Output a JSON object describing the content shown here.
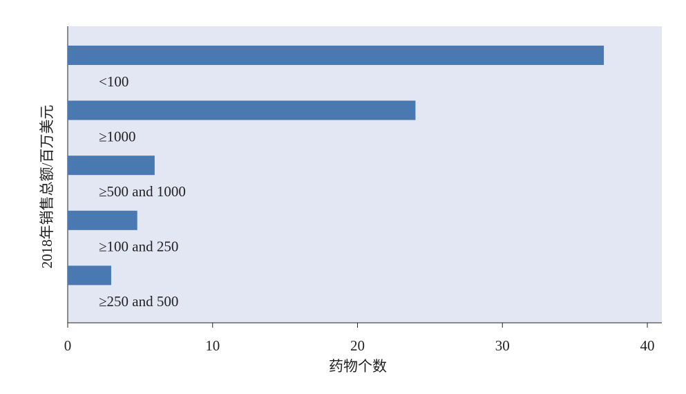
{
  "chart_data": {
    "type": "bar",
    "orientation": "horizontal",
    "categories": [
      "<100",
      "≥1000",
      "≥500 and 1000",
      "≥100 and 250",
      "≥250 and 500"
    ],
    "values": [
      37,
      24,
      6,
      4.8,
      3
    ],
    "color": "#4a79b1",
    "xlim": [
      0,
      41
    ],
    "xticks": [
      0,
      10,
      20,
      30,
      40
    ],
    "xlabel": "药物个数",
    "ylabel": "2018年销售总额/百万美元",
    "grid": false
  }
}
